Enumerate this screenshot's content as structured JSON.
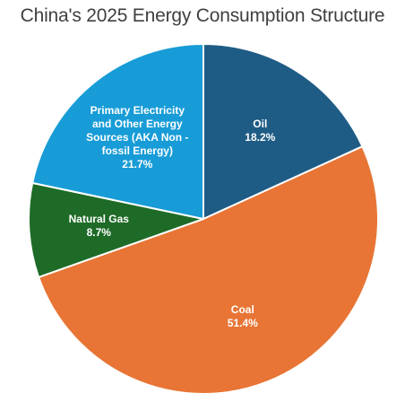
{
  "chart_data": {
    "type": "pie",
    "title": "China's 2025 Energy Consumption Structure",
    "start_angle_deg": 0,
    "direction": "clockwise",
    "slices": [
      {
        "label": "Oil",
        "value": 18.2,
        "display": "18.2%",
        "color": "#1F5C85",
        "label_lines": [
          "Oil"
        ]
      },
      {
        "label": "Coal",
        "value": 51.4,
        "display": "51.4%",
        "color": "#E87535",
        "label_lines": [
          "Coal"
        ]
      },
      {
        "label": "Natural Gas",
        "value": 8.7,
        "display": "8.7%",
        "color": "#1E6B27",
        "label_lines": [
          "Natural Gas"
        ]
      },
      {
        "label": "Primary Electricity and Other Energy Sources (AKA Non - fossil Energy)",
        "value": 21.7,
        "display": "21.7%",
        "color": "#189CD7",
        "label_lines": [
          "Primary Electricity",
          "and Other Energy",
          "Sources (AKA Non -",
          "fossil Energy)"
        ]
      }
    ]
  }
}
